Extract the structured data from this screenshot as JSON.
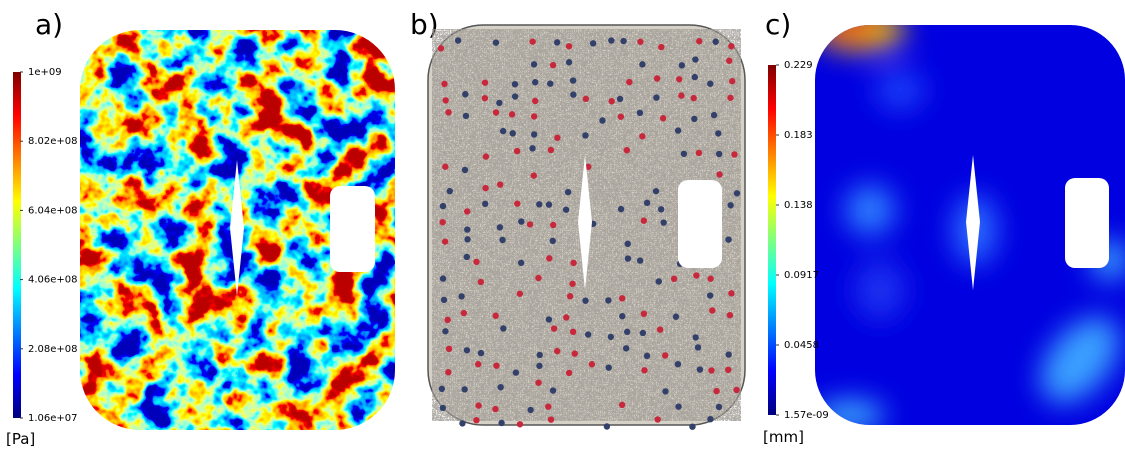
{
  "panels": [
    {
      "label": "a)",
      "colorbar": {
        "ticks": [
          "1e+09",
          "8.02e+08",
          "6.04e+08",
          "4.06e+08",
          "2.08e+08",
          "1.06e+07"
        ],
        "unit": "[Pa]"
      }
    },
    {
      "label": "b)"
    },
    {
      "label": "c)",
      "colorbar": {
        "ticks": [
          "0.229",
          "0.183",
          "0.138",
          "0.0917",
          "0.0458",
          "1.57e-09"
        ],
        "unit": "[mm]"
      }
    }
  ]
}
